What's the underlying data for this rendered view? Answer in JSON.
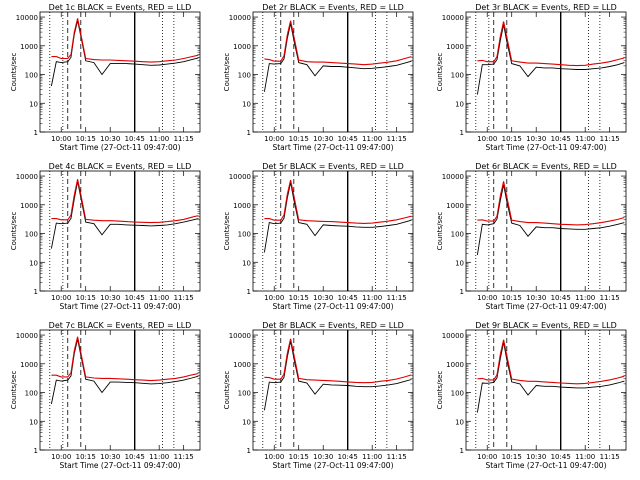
{
  "colors": {
    "events": "#000000",
    "lld": "#e00000",
    "background": "#ffffff",
    "axes": "#000000"
  },
  "chart_data": [
    {
      "type": "line",
      "title": "Det 1c BLACK = Events, RED = LLD",
      "xlabel": "Start Time (27-Oct-11 09:47:00)",
      "ylabel": "Counts/sec",
      "yscale": "log",
      "ylim": [
        1,
        15000
      ],
      "xlim": [
        "09:47",
        "11:25"
      ],
      "x_ticks": [
        "10:00",
        "10:15",
        "10:30",
        "10:45",
        "11:00",
        "11:15"
      ],
      "y_ticks": [
        "1",
        "10",
        "100",
        "1000",
        "10000"
      ],
      "x": [
        "09:54",
        "09:57",
        "10:00",
        "10:04",
        "10:06",
        "10:08",
        "10:10",
        "10:12",
        "10:15",
        "10:20",
        "10:25",
        "10:30",
        "10:35",
        "10:40",
        "10:45",
        "10:50",
        "10:55",
        "11:00",
        "11:05",
        "11:10",
        "11:15",
        "11:20",
        "11:24"
      ],
      "series": [
        {
          "name": "Events",
          "values": [
            40,
            280,
            260,
            280,
            400,
            2500,
            7500,
            2200,
            300,
            260,
            100,
            240,
            240,
            240,
            230,
            220,
            210,
            215,
            230,
            250,
            280,
            330,
            380
          ]
        },
        {
          "name": "LLD",
          "values": [
            420,
            420,
            360,
            360,
            500,
            3000,
            9000,
            2600,
            360,
            330,
            320,
            320,
            310,
            300,
            290,
            280,
            270,
            280,
            300,
            320,
            360,
            420,
            470
          ]
        }
      ],
      "dotted_markers": [
        "09:53",
        "10:01",
        "11:02",
        "11:09"
      ],
      "dashed_markers": [
        "10:04",
        "10:12"
      ],
      "solid_markers": [
        "10:45"
      ]
    },
    {
      "type": "line",
      "title": "Det 2r BLACK = Events, RED = LLD",
      "xlabel": "Start Time (27-Oct-11 09:47:00)",
      "ylabel": "Counts/sec",
      "yscale": "log",
      "ylim": [
        1,
        15000
      ],
      "xlim": [
        "09:47",
        "11:25"
      ],
      "x_ticks": [
        "10:00",
        "10:15",
        "10:30",
        "10:45",
        "11:00",
        "11:15"
      ],
      "y_ticks": [
        "1",
        "10",
        "100",
        "1000",
        "10000"
      ],
      "x": [
        "09:54",
        "09:57",
        "10:00",
        "10:04",
        "10:06",
        "10:08",
        "10:10",
        "10:12",
        "10:15",
        "10:20",
        "10:25",
        "10:30",
        "10:35",
        "10:40",
        "10:45",
        "10:50",
        "10:55",
        "11:00",
        "11:05",
        "11:10",
        "11:15",
        "11:20",
        "11:24"
      ],
      "series": [
        {
          "name": "Events",
          "values": [
            25,
            240,
            230,
            240,
            350,
            1800,
            6000,
            1600,
            260,
            220,
            90,
            200,
            190,
            190,
            180,
            170,
            160,
            165,
            175,
            190,
            210,
            250,
            290
          ]
        },
        {
          "name": "LLD",
          "values": [
            350,
            330,
            290,
            290,
            450,
            2400,
            7500,
            2200,
            320,
            280,
            270,
            270,
            260,
            250,
            240,
            230,
            220,
            230,
            250,
            270,
            300,
            360,
            420
          ]
        }
      ],
      "dotted_markers": [
        "09:53",
        "10:01",
        "11:02",
        "11:09"
      ],
      "dashed_markers": [
        "10:04",
        "10:12"
      ],
      "solid_markers": [
        "10:45"
      ]
    },
    {
      "type": "line",
      "title": "Det 3r BLACK = Events, RED = LLD",
      "xlabel": "Start Time (27-Oct-11 09:47:00)",
      "ylabel": "Counts/sec",
      "yscale": "log",
      "ylim": [
        1,
        15000
      ],
      "xlim": [
        "09:47",
        "11:25"
      ],
      "x_ticks": [
        "10:00",
        "10:15",
        "10:30",
        "10:45",
        "11:00",
        "11:15"
      ],
      "y_ticks": [
        "1",
        "10",
        "100",
        "1000",
        "10000"
      ],
      "x": [
        "09:54",
        "09:57",
        "10:00",
        "10:04",
        "10:06",
        "10:08",
        "10:10",
        "10:12",
        "10:15",
        "10:20",
        "10:25",
        "10:30",
        "10:35",
        "10:40",
        "10:45",
        "10:50",
        "10:55",
        "11:00",
        "11:05",
        "11:10",
        "11:15",
        "11:20",
        "11:24"
      ],
      "series": [
        {
          "name": "Events",
          "values": [
            20,
            220,
            220,
            230,
            330,
            1500,
            5500,
            1400,
            240,
            200,
            85,
            180,
            170,
            170,
            160,
            155,
            150,
            150,
            160,
            170,
            190,
            220,
            260
          ]
        },
        {
          "name": "LLD",
          "values": [
            300,
            310,
            280,
            280,
            420,
            2100,
            7000,
            2000,
            300,
            270,
            250,
            250,
            240,
            230,
            220,
            210,
            205,
            210,
            230,
            250,
            280,
            330,
            380
          ]
        }
      ],
      "dotted_markers": [
        "09:53",
        "10:01",
        "11:02",
        "11:09"
      ],
      "dashed_markers": [
        "10:04",
        "10:12"
      ],
      "solid_markers": [
        "10:45"
      ]
    },
    {
      "type": "line",
      "title": "Det 4c BLACK = Events, RED = LLD",
      "xlabel": "Start Time (27-Oct-11 09:47:00)",
      "ylabel": "Counts/sec",
      "yscale": "log",
      "ylim": [
        1,
        15000
      ],
      "xlim": [
        "09:47",
        "11:25"
      ],
      "x_ticks": [
        "10:00",
        "10:15",
        "10:30",
        "10:45",
        "11:00",
        "11:15"
      ],
      "y_ticks": [
        "1",
        "10",
        "100",
        "1000",
        "10000"
      ],
      "x": [
        "09:54",
        "09:57",
        "10:00",
        "10:04",
        "10:06",
        "10:08",
        "10:10",
        "10:12",
        "10:15",
        "10:20",
        "10:25",
        "10:30",
        "10:35",
        "10:40",
        "10:45",
        "10:50",
        "10:55",
        "11:00",
        "11:05",
        "11:10",
        "11:15",
        "11:20",
        "11:24"
      ],
      "series": [
        {
          "name": "Events",
          "values": [
            30,
            230,
            220,
            230,
            340,
            1600,
            6500,
            1800,
            250,
            220,
            90,
            210,
            210,
            200,
            195,
            190,
            185,
            190,
            200,
            220,
            250,
            290,
            330
          ]
        },
        {
          "name": "LLD",
          "values": [
            330,
            330,
            300,
            300,
            440,
            2200,
            7800,
            2300,
            310,
            290,
            280,
            280,
            270,
            260,
            250,
            245,
            240,
            245,
            260,
            280,
            310,
            370,
            420
          ]
        }
      ],
      "dotted_markers": [
        "09:53",
        "10:01",
        "11:02",
        "11:09"
      ],
      "dashed_markers": [
        "10:04",
        "10:12"
      ],
      "solid_markers": [
        "10:45"
      ]
    },
    {
      "type": "line",
      "title": "Det 5r BLACK = Events, RED = LLD",
      "xlabel": "Start Time (27-Oct-11 09:47:00)",
      "ylabel": "Counts/sec",
      "yscale": "log",
      "ylim": [
        1,
        15000
      ],
      "xlim": [
        "09:47",
        "11:25"
      ],
      "x_ticks": [
        "10:00",
        "10:15",
        "10:30",
        "10:45",
        "11:00",
        "11:15"
      ],
      "y_ticks": [
        "1",
        "10",
        "100",
        "1000",
        "10000"
      ],
      "x": [
        "09:54",
        "09:57",
        "10:00",
        "10:04",
        "10:06",
        "10:08",
        "10:10",
        "10:12",
        "10:15",
        "10:20",
        "10:25",
        "10:30",
        "10:35",
        "10:40",
        "10:45",
        "10:50",
        "10:55",
        "11:00",
        "11:05",
        "11:10",
        "11:15",
        "11:20",
        "11:24"
      ],
      "series": [
        {
          "name": "Events",
          "values": [
            22,
            240,
            220,
            230,
            340,
            1700,
            6000,
            1500,
            240,
            210,
            85,
            200,
            190,
            185,
            180,
            170,
            165,
            165,
            175,
            190,
            210,
            250,
            290
          ]
        },
        {
          "name": "LLD",
          "values": [
            330,
            330,
            290,
            290,
            440,
            2300,
            7300,
            2100,
            300,
            280,
            270,
            265,
            260,
            250,
            240,
            230,
            225,
            230,
            250,
            270,
            300,
            350,
            400
          ]
        }
      ],
      "dotted_markers": [
        "09:53",
        "10:01",
        "11:02",
        "11:09"
      ],
      "dashed_markers": [
        "10:04",
        "10:12"
      ],
      "solid_markers": [
        "10:45"
      ]
    },
    {
      "type": "line",
      "title": "Det 6r BLACK = Events, RED = LLD",
      "xlabel": "Start Time (27-Oct-11 09:47:00)",
      "ylabel": "Counts/sec",
      "yscale": "log",
      "ylim": [
        1,
        15000
      ],
      "xlim": [
        "09:47",
        "11:25"
      ],
      "x_ticks": [
        "10:00",
        "10:15",
        "10:30",
        "10:45",
        "11:00",
        "11:15"
      ],
      "y_ticks": [
        "1",
        "10",
        "100",
        "1000",
        "10000"
      ],
      "x": [
        "09:54",
        "09:57",
        "10:00",
        "10:04",
        "10:06",
        "10:08",
        "10:10",
        "10:12",
        "10:15",
        "10:20",
        "10:25",
        "10:30",
        "10:35",
        "10:40",
        "10:45",
        "10:50",
        "10:55",
        "11:00",
        "11:05",
        "11:10",
        "11:15",
        "11:20",
        "11:24"
      ],
      "series": [
        {
          "name": "Events",
          "values": [
            18,
            210,
            200,
            220,
            320,
            1400,
            5000,
            1300,
            230,
            190,
            80,
            170,
            160,
            160,
            150,
            145,
            140,
            140,
            150,
            160,
            180,
            210,
            240
          ]
        },
        {
          "name": "LLD",
          "values": [
            290,
            300,
            270,
            270,
            400,
            2000,
            6500,
            1900,
            290,
            260,
            240,
            240,
            230,
            220,
            210,
            205,
            200,
            205,
            220,
            240,
            270,
            310,
            360
          ]
        }
      ],
      "dotted_markers": [
        "09:53",
        "10:01",
        "11:02",
        "11:09"
      ],
      "dashed_markers": [
        "10:04",
        "10:12"
      ],
      "solid_markers": [
        "10:45"
      ]
    },
    {
      "type": "line",
      "title": "Det 7c BLACK = Events, RED = LLD",
      "xlabel": "Start Time (27-Oct-11 09:47:00)",
      "ylabel": "Counts/sec",
      "yscale": "log",
      "ylim": [
        1,
        15000
      ],
      "xlim": [
        "09:47",
        "11:25"
      ],
      "x_ticks": [
        "10:00",
        "10:15",
        "10:30",
        "10:45",
        "11:00",
        "11:15"
      ],
      "y_ticks": [
        "1",
        "10",
        "100",
        "1000",
        "10000"
      ],
      "x": [
        "09:54",
        "09:57",
        "10:00",
        "10:04",
        "10:06",
        "10:08",
        "10:10",
        "10:12",
        "10:15",
        "10:20",
        "10:25",
        "10:30",
        "10:35",
        "10:40",
        "10:45",
        "10:50",
        "10:55",
        "11:00",
        "11:05",
        "11:10",
        "11:15",
        "11:20",
        "11:24"
      ],
      "series": [
        {
          "name": "Events",
          "values": [
            40,
            270,
            250,
            270,
            380,
            2300,
            7200,
            2000,
            290,
            250,
            100,
            230,
            230,
            225,
            220,
            210,
            200,
            205,
            220,
            240,
            270,
            320,
            370
          ]
        },
        {
          "name": "LLD",
          "values": [
            400,
            400,
            350,
            350,
            490,
            2900,
            8800,
            2500,
            350,
            320,
            310,
            310,
            300,
            290,
            280,
            270,
            260,
            270,
            290,
            310,
            350,
            410,
            460
          ]
        }
      ],
      "dotted_markers": [
        "09:53",
        "10:01",
        "11:02",
        "11:09"
      ],
      "dashed_markers": [
        "10:04",
        "10:12"
      ],
      "solid_markers": [
        "10:45"
      ]
    },
    {
      "type": "line",
      "title": "Det 8r BLACK = Events, RED = LLD",
      "xlabel": "Start Time (27-Oct-11 09:47:00)",
      "ylabel": "Counts/sec",
      "yscale": "log",
      "ylim": [
        1,
        15000
      ],
      "xlim": [
        "09:47",
        "11:25"
      ],
      "x_ticks": [
        "10:00",
        "10:15",
        "10:30",
        "10:45",
        "11:00",
        "11:15"
      ],
      "y_ticks": [
        "1",
        "10",
        "100",
        "1000",
        "10000"
      ],
      "x": [
        "09:54",
        "09:57",
        "10:00",
        "10:04",
        "10:06",
        "10:08",
        "10:10",
        "10:12",
        "10:15",
        "10:20",
        "10:25",
        "10:30",
        "10:35",
        "10:40",
        "10:45",
        "10:50",
        "10:55",
        "11:00",
        "11:05",
        "11:10",
        "11:15",
        "11:20",
        "11:24"
      ],
      "series": [
        {
          "name": "Events",
          "values": [
            24,
            230,
            220,
            230,
            340,
            1700,
            6200,
            1600,
            250,
            215,
            88,
            195,
            185,
            180,
            175,
            165,
            160,
            160,
            170,
            185,
            205,
            245,
            285
          ]
        },
        {
          "name": "LLD",
          "values": [
            340,
            330,
            290,
            290,
            440,
            2300,
            7400,
            2150,
            310,
            280,
            270,
            265,
            255,
            245,
            235,
            225,
            220,
            225,
            245,
            265,
            295,
            350,
            410
          ]
        }
      ],
      "dotted_markers": [
        "09:53",
        "10:01",
        "11:02",
        "11:09"
      ],
      "dashed_markers": [
        "10:04",
        "10:12"
      ],
      "solid_markers": [
        "10:45"
      ]
    },
    {
      "type": "line",
      "title": "Det 9r BLACK = Events, RED = LLD",
      "xlabel": "Start Time (27-Oct-11 09:47:00)",
      "ylabel": "Counts/sec",
      "yscale": "log",
      "ylim": [
        1,
        15000
      ],
      "xlim": [
        "09:47",
        "11:25"
      ],
      "x_ticks": [
        "10:00",
        "10:15",
        "10:30",
        "10:45",
        "11:00",
        "11:15"
      ],
      "y_ticks": [
        "1",
        "10",
        "100",
        "1000",
        "10000"
      ],
      "x": [
        "09:54",
        "09:57",
        "10:00",
        "10:04",
        "10:06",
        "10:08",
        "10:10",
        "10:12",
        "10:15",
        "10:20",
        "10:25",
        "10:30",
        "10:35",
        "10:40",
        "10:45",
        "10:50",
        "10:55",
        "11:00",
        "11:05",
        "11:10",
        "11:15",
        "11:20",
        "11:24"
      ],
      "series": [
        {
          "name": "Events",
          "values": [
            20,
            215,
            210,
            225,
            325,
            1500,
            5600,
            1400,
            235,
            200,
            82,
            175,
            165,
            165,
            155,
            150,
            145,
            145,
            155,
            165,
            185,
            215,
            250
          ]
        },
        {
          "name": "LLD",
          "values": [
            300,
            310,
            275,
            275,
            415,
            2100,
            6900,
            1950,
            295,
            265,
            245,
            245,
            235,
            225,
            215,
            208,
            202,
            208,
            225,
            245,
            275,
            320,
            370
          ]
        }
      ],
      "dotted_markers": [
        "09:53",
        "10:01",
        "11:02",
        "11:09"
      ],
      "dashed_markers": [
        "10:04",
        "10:12"
      ],
      "solid_markers": [
        "10:45"
      ]
    }
  ]
}
